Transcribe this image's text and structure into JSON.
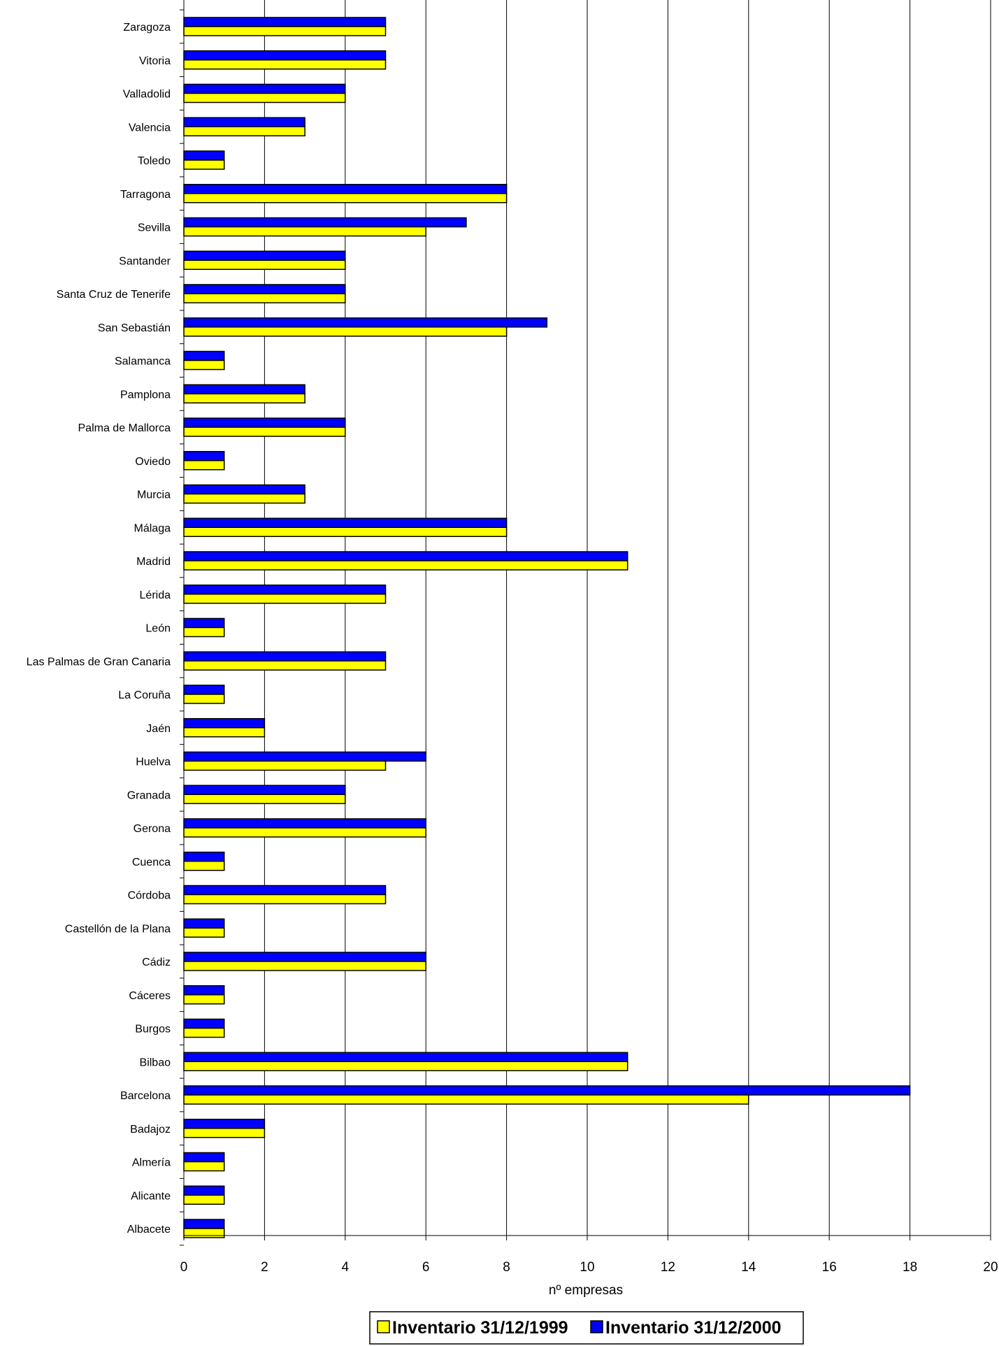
{
  "chart_data": {
    "type": "bar",
    "orientation": "horizontal",
    "title": "",
    "xlabel": "nº empresas",
    "ylabel": "",
    "xlim": [
      0,
      20
    ],
    "x_ticks": [
      0,
      2,
      4,
      6,
      8,
      10,
      12,
      14,
      16,
      18,
      20
    ],
    "grid": "vertical major gridlines",
    "legend_position": "bottom",
    "categories": [
      "Zaragoza",
      "Vitoria",
      "Valladolid",
      "Valencia",
      "Toledo",
      "Tarragona",
      "Sevilla",
      "Santander",
      "Santa Cruz de Tenerife",
      "San Sebastián",
      "Salamanca",
      "Pamplona",
      "Palma de Mallorca",
      "Oviedo",
      "Murcia",
      "Málaga",
      "Madrid",
      "Lérida",
      "León",
      "Las Palmas de Gran Canaria",
      "La Coruña",
      "Jaén",
      "Huelva",
      "Granada",
      "Gerona",
      "Cuenca",
      "Córdoba",
      "Castellón de la Plana",
      "Cádiz",
      "Cáceres",
      "Burgos",
      "Bilbao",
      "Barcelona",
      "Badajoz",
      "Almería",
      "Alicante",
      "Albacete"
    ],
    "series": [
      {
        "name": "Inventario 31/12/1999",
        "color": "#FFFF00",
        "values": [
          5,
          5,
          4,
          3,
          1,
          8,
          6,
          4,
          4,
          8,
          1,
          3,
          4,
          1,
          3,
          8,
          11,
          5,
          1,
          5,
          1,
          2,
          5,
          4,
          6,
          1,
          5,
          1,
          6,
          1,
          1,
          11,
          14,
          2,
          1,
          1,
          1
        ]
      },
      {
        "name": "Inventario 31/12/2000",
        "color": "#0000FF",
        "values": [
          5,
          5,
          4,
          3,
          1,
          8,
          7,
          4,
          4,
          9,
          1,
          3,
          4,
          1,
          3,
          8,
          11,
          5,
          1,
          5,
          1,
          2,
          6,
          4,
          6,
          1,
          5,
          1,
          6,
          1,
          1,
          11,
          18,
          2,
          1,
          1,
          1
        ]
      }
    ]
  }
}
